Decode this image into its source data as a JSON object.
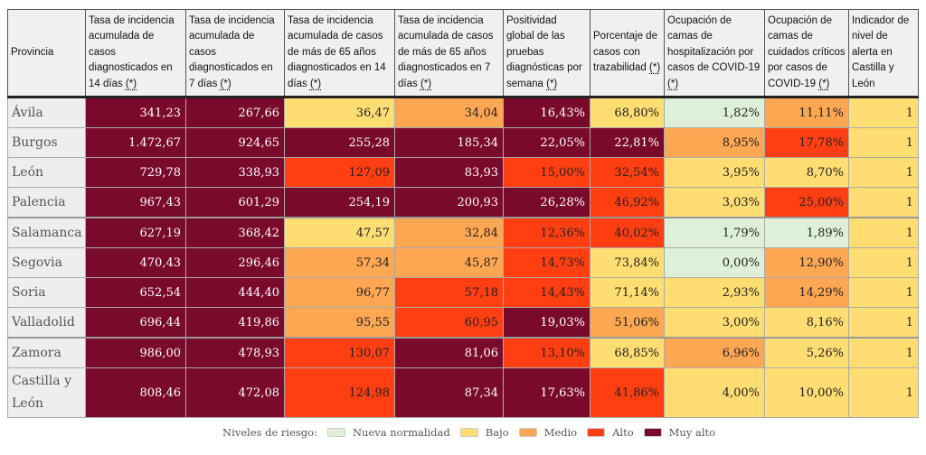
{
  "colors": {
    "n": "#def0d8",
    "b": "#fedd72",
    "m": "#fda752",
    "a": "#ff3f12",
    "ma": "#7a0a2c"
  },
  "headers": [
    {
      "label": "Provincia",
      "ref": ""
    },
    {
      "label": "Tasa de incidencia acumulada de casos diagnosticados en 14 días ",
      "ref": "(*)"
    },
    {
      "label": "Tasa de incidencia acumulada de casos diagnosticados en 7 días ",
      "ref": "(*)"
    },
    {
      "label": "Tasa de incidencia acumulada de casos de más de 65 años diagnosticados en 14 días ",
      "ref": "(*)"
    },
    {
      "label": "Tasa de incidencia acumulada de casos de más de 65 años diagnosticados en 7 días ",
      "ref": "(*)"
    },
    {
      "label": "Positividad global de las pruebas diagnósticas por semana ",
      "ref": "(*)"
    },
    {
      "label": "Porcentaje de casos con trazabilidad ",
      "ref": "(*)"
    },
    {
      "label": "Ocupación de camas de hospitalización por casos de COVID-19 ",
      "ref": "(*)"
    },
    {
      "label": "Ocupación de camas de cuidados críticos por casos de COVID-19 ",
      "ref": "(*)"
    },
    {
      "label": "Indicador de nivel de alerta en Castilla y León",
      "ref": ""
    }
  ],
  "rows": [
    {
      "provincia": "Ávila",
      "values": [
        "341,23",
        "267,66",
        "36,47",
        "34,04",
        "16,43%",
        "68,80%",
        "1,82%",
        "11,11%",
        "1"
      ],
      "levels": [
        "ma",
        "ma",
        "b",
        "m",
        "ma",
        "b",
        "n",
        "m",
        "b"
      ]
    },
    {
      "provincia": "Burgos",
      "values": [
        "1.472,67",
        "924,65",
        "255,28",
        "185,34",
        "22,05%",
        "22,81%",
        "8,95%",
        "17,78%",
        "1"
      ],
      "levels": [
        "ma",
        "ma",
        "ma",
        "ma",
        "ma",
        "ma",
        "m",
        "a",
        "b"
      ]
    },
    {
      "provincia": "León",
      "values": [
        "729,78",
        "338,93",
        "127,09",
        "83,93",
        "15,00%",
        "32,54%",
        "3,95%",
        "8,70%",
        "1"
      ],
      "levels": [
        "ma",
        "ma",
        "a",
        "ma",
        "a",
        "a",
        "b",
        "b",
        "b"
      ]
    },
    {
      "provincia": "Palencia",
      "values": [
        "967,43",
        "601,29",
        "254,19",
        "200,93",
        "26,28%",
        "46,92%",
        "3,03%",
        "25,00%",
        "1"
      ],
      "levels": [
        "ma",
        "ma",
        "ma",
        "ma",
        "ma",
        "a",
        "b",
        "a",
        "b"
      ]
    },
    {
      "provincia": "Salamanca",
      "values": [
        "627,19",
        "368,42",
        "47,57",
        "32,84",
        "12,36%",
        "40,02%",
        "1,79%",
        "1,89%",
        "1"
      ],
      "levels": [
        "ma",
        "ma",
        "b",
        "m",
        "a",
        "a",
        "n",
        "n",
        "b"
      ]
    },
    {
      "provincia": "Segovia",
      "values": [
        "470,43",
        "296,46",
        "57,34",
        "45,87",
        "14,73%",
        "73,84%",
        "0,00%",
        "12,90%",
        "1"
      ],
      "levels": [
        "ma",
        "ma",
        "m",
        "m",
        "a",
        "b",
        "n",
        "m",
        "b"
      ]
    },
    {
      "provincia": "Soria",
      "values": [
        "652,54",
        "444,40",
        "96,77",
        "57,18",
        "14,43%",
        "71,14%",
        "2,93%",
        "14,29%",
        "1"
      ],
      "levels": [
        "ma",
        "ma",
        "m",
        "a",
        "a",
        "b",
        "b",
        "m",
        "b"
      ]
    },
    {
      "provincia": "Valladolid",
      "values": [
        "696,44",
        "419,86",
        "95,55",
        "60,95",
        "19,03%",
        "51,06%",
        "3,00%",
        "8,16%",
        "1"
      ],
      "levels": [
        "ma",
        "ma",
        "m",
        "a",
        "ma",
        "m",
        "b",
        "b",
        "b"
      ]
    },
    {
      "provincia": "Zamora",
      "values": [
        "986,00",
        "478,93",
        "130,07",
        "81,06",
        "13,10%",
        "68,85%",
        "6,96%",
        "5,26%",
        "1"
      ],
      "levels": [
        "ma",
        "ma",
        "a",
        "ma",
        "a",
        "b",
        "m",
        "b",
        "b"
      ]
    },
    {
      "provincia": "Castilla y León",
      "values": [
        "808,46",
        "472,08",
        "124,98",
        "87,34",
        "17,63%",
        "41,86%",
        "4,00%",
        "10,00%",
        "1"
      ],
      "levels": [
        "ma",
        "ma",
        "a",
        "ma",
        "ma",
        "a",
        "b",
        "b",
        "b"
      ]
    }
  ],
  "legend": {
    "title": "Niveles de riesgo:",
    "items": [
      {
        "level": "n",
        "label": "Nueva normalidad"
      },
      {
        "level": "b",
        "label": "Bajo"
      },
      {
        "level": "m",
        "label": "Medio"
      },
      {
        "level": "a",
        "label": "Alto"
      },
      {
        "level": "ma",
        "label": "Muy alto"
      }
    ]
  }
}
